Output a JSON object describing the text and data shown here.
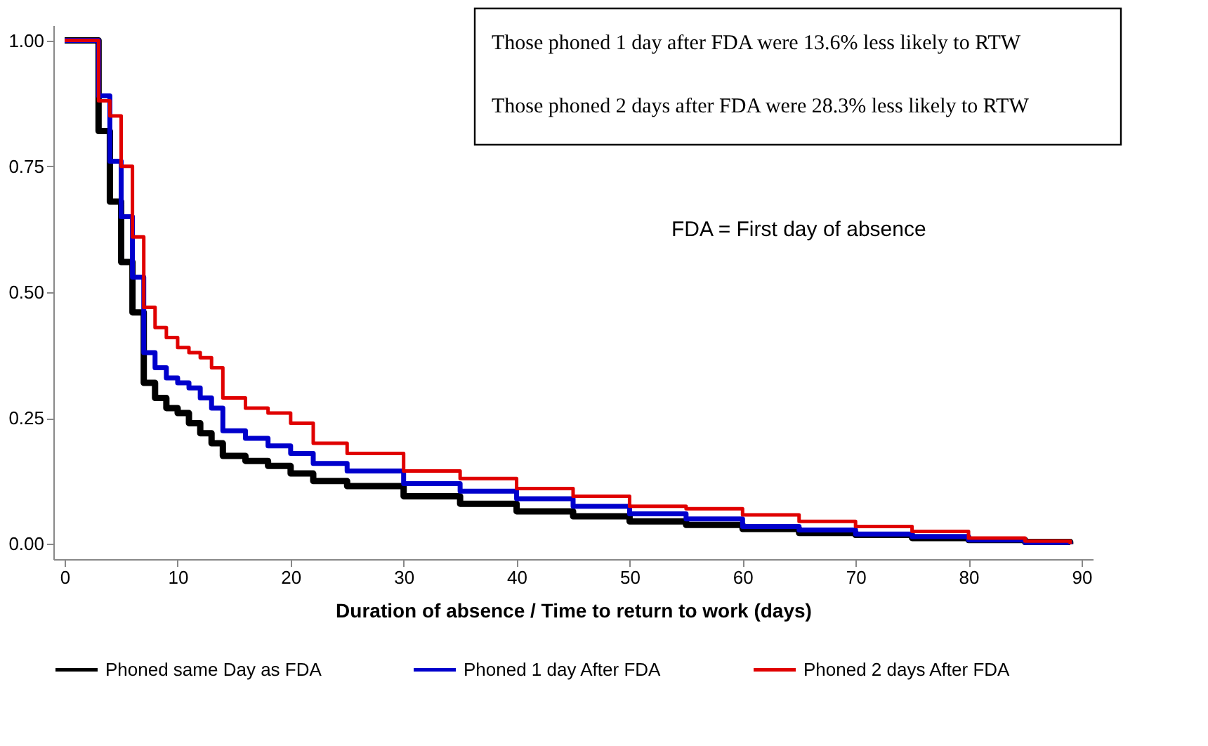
{
  "chart_data": {
    "type": "step",
    "xlabel": "Duration of absence / Time to return to work (days)",
    "x": [
      0,
      3,
      4,
      5,
      6,
      7,
      8,
      9,
      10,
      11,
      12,
      13,
      14,
      16,
      18,
      20,
      22,
      25,
      30,
      35,
      40,
      45,
      50,
      55,
      60,
      65,
      70,
      75,
      80,
      85,
      89
    ],
    "series": [
      {
        "name": "Phoned same Day as FDA",
        "color": "#000000",
        "values": [
          1,
          0.82,
          0.68,
          0.56,
          0.46,
          0.32,
          0.29,
          0.27,
          0.26,
          0.24,
          0.22,
          0.2,
          0.175,
          0.165,
          0.155,
          0.14,
          0.125,
          0.115,
          0.095,
          0.08,
          0.065,
          0.055,
          0.045,
          0.038,
          0.03,
          0.022,
          0.018,
          0.012,
          0.008,
          0.004,
          0
        ]
      },
      {
        "name": "Phoned 1 day After FDA",
        "color": "#0000cc",
        "values": [
          1,
          0.89,
          0.76,
          0.65,
          0.53,
          0.38,
          0.35,
          0.33,
          0.32,
          0.31,
          0.29,
          0.27,
          0.225,
          0.21,
          0.195,
          0.18,
          0.16,
          0.145,
          0.12,
          0.105,
          0.09,
          0.075,
          0.06,
          0.05,
          0.035,
          0.028,
          0.02,
          0.015,
          0.008,
          0.003,
          0
        ]
      },
      {
        "name": "Phoned 2 days After FDA",
        "color": "#e00000",
        "values": [
          1,
          0.88,
          0.85,
          0.75,
          0.61,
          0.47,
          0.43,
          0.41,
          0.39,
          0.38,
          0.37,
          0.35,
          0.29,
          0.27,
          0.26,
          0.24,
          0.2,
          0.18,
          0.145,
          0.13,
          0.11,
          0.095,
          0.075,
          0.07,
          0.058,
          0.045,
          0.035,
          0.025,
          0.012,
          0.006,
          0
        ]
      }
    ],
    "xlim": [
      -1,
      91
    ],
    "xticks": [
      0,
      10,
      20,
      30,
      40,
      50,
      60,
      70,
      80,
      90
    ],
    "ylim": [
      -0.03,
      1.03
    ],
    "yticks": [
      {
        "value": 0,
        "label": "0.00"
      },
      0.25,
      {
        "value": 0.5,
        "label": "0.50"
      },
      0.75,
      {
        "value": 1,
        "label": "1.00"
      }
    ],
    "annotations": [
      "Those phoned 1 day after FDA were 13.6% less likely to RTW",
      "Those phoned 2 days after FDA were 28.3% less likely to RTW",
      "FDA = First day of absence"
    ],
    "legend": "bottom",
    "grid": false,
    "line_style": "solid"
  }
}
